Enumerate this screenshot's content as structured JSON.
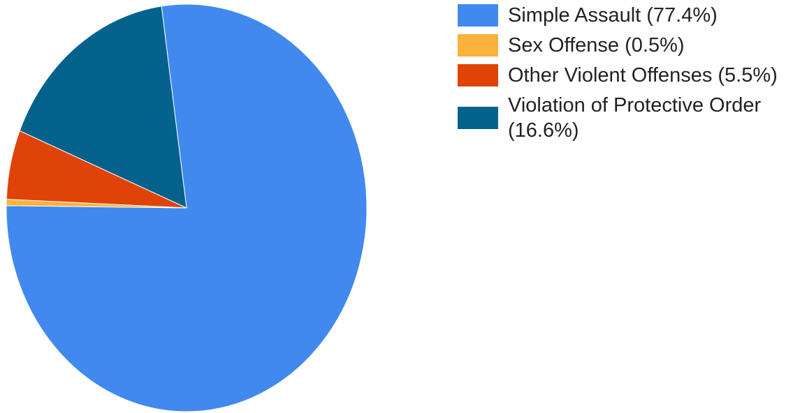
{
  "chart_data": {
    "type": "pie",
    "start_angle_deg": -8,
    "legend_position": "right",
    "slices": [
      {
        "label": "Simple Assault",
        "value": 77.4,
        "legend_text": "Simple Assault (77.4%)",
        "color": "#4189ee"
      },
      {
        "label": "Sex Offense",
        "value": 0.5,
        "legend_text": "Sex Offense (0.5%)",
        "color": "#fbb13c"
      },
      {
        "label": "Other Violent Offenses",
        "value": 5.5,
        "legend_text": "Other Violent Offenses (5.5%)",
        "color": "#df4307"
      },
      {
        "label": "Violation of Protective Order",
        "value": 16.6,
        "legend_text": "Violation of Protective Order (16.6%)",
        "color": "#05628c"
      }
    ]
  }
}
